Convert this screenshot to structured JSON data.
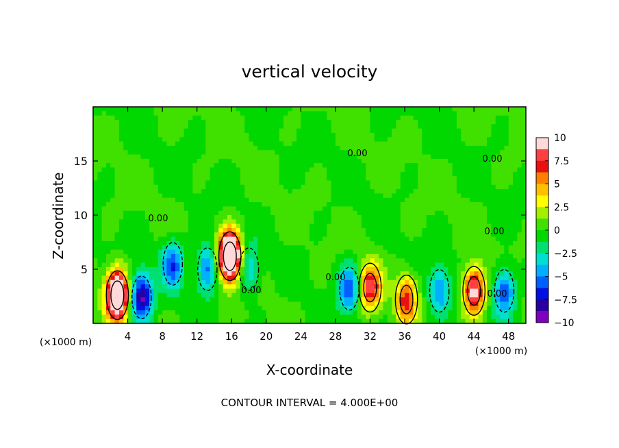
{
  "chart_data": {
    "type": "heatmap",
    "title": "vertical velocity",
    "xlabel": "X-coordinate",
    "ylabel": "Z-coordinate",
    "x_unit_left": "(×1000 m)",
    "x_unit_right": "(×1000 m)",
    "footer": "CONTOUR INTERVAL = 4.000E+00",
    "xlim": [
      0,
      50
    ],
    "ylim": [
      0,
      20
    ],
    "xticks": [
      4,
      8,
      12,
      16,
      20,
      24,
      28,
      32,
      36,
      40,
      44,
      48
    ],
    "yticks": [
      5,
      10,
      15
    ],
    "contour_labels": [
      "0.00",
      "0.00",
      "0.00",
      "0.00",
      "0.00",
      "0.00",
      "0.00"
    ],
    "colorbar": {
      "ticks": [
        "10",
        "7.5",
        "5",
        "2.5",
        "0",
        "−2.5",
        "−5",
        "−7.5",
        "−10"
      ],
      "range": [
        -10,
        10
      ],
      "colors": [
        "#ffd8d8",
        "#ff4040",
        "#e81010",
        "#ff8000",
        "#ffc000",
        "#ffff00",
        "#a0f000",
        "#40e000",
        "#00d800",
        "#00e070",
        "#00e0d0",
        "#00b0ff",
        "#0060ff",
        "#0010e0",
        "#2800a0",
        "#8000c0"
      ]
    },
    "features": [
      {
        "x": 2.8,
        "z": 2.6,
        "w": 11,
        "peak": 16
      },
      {
        "x": 5.6,
        "z": 2.4,
        "w": -7,
        "peak": -9
      },
      {
        "x": 9.2,
        "z": 5.5,
        "w": -5,
        "peak": -6
      },
      {
        "x": 13.2,
        "z": 5.0,
        "w": -5,
        "peak": -6
      },
      {
        "x": 15.8,
        "z": 6.2,
        "w": 12,
        "peak": 18
      },
      {
        "x": 18.0,
        "z": 5.0,
        "w": -3,
        "peak": -4
      },
      {
        "x": 29.6,
        "z": 3.2,
        "w": -5,
        "peak": -6
      },
      {
        "x": 32.0,
        "z": 3.3,
        "w": 7,
        "peak": 8
      },
      {
        "x": 36.2,
        "z": 2.2,
        "w": 6,
        "peak": 7
      },
      {
        "x": 40.0,
        "z": 3.0,
        "w": -4,
        "peak": -5
      },
      {
        "x": 44.0,
        "z": 3.0,
        "w": 8,
        "peak": 10
      },
      {
        "x": 47.5,
        "z": 3.0,
        "w": -5,
        "peak": -6
      }
    ]
  }
}
